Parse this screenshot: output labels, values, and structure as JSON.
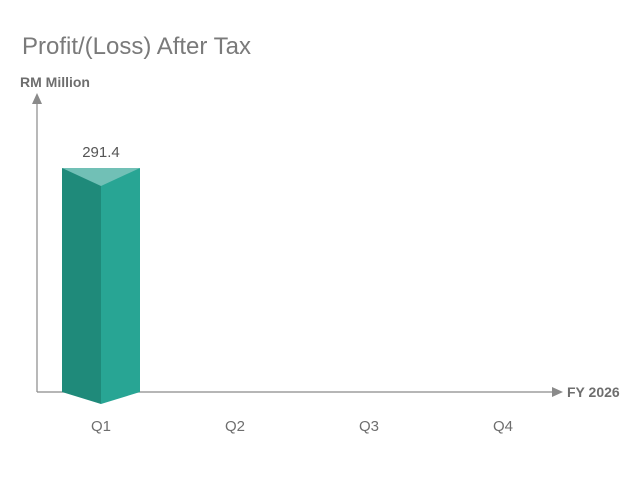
{
  "chart_data": {
    "type": "bar",
    "title": "Profit/(Loss) After Tax",
    "ylabel": "RM Million",
    "xlabel": "FY 2026",
    "categories": [
      "Q1",
      "Q2",
      "Q3",
      "Q4"
    ],
    "values": [
      291.4,
      null,
      null,
      null
    ],
    "data_labels": [
      "291.4",
      "",
      "",
      ""
    ],
    "ylim": [
      0,
      291.4
    ],
    "grid": false,
    "legend": "none",
    "colors": {
      "bar_left": "#1f8a7a",
      "bar_right": "#28a594",
      "bar_top": "#71c0b6",
      "axis": "#8a8a8a"
    }
  }
}
